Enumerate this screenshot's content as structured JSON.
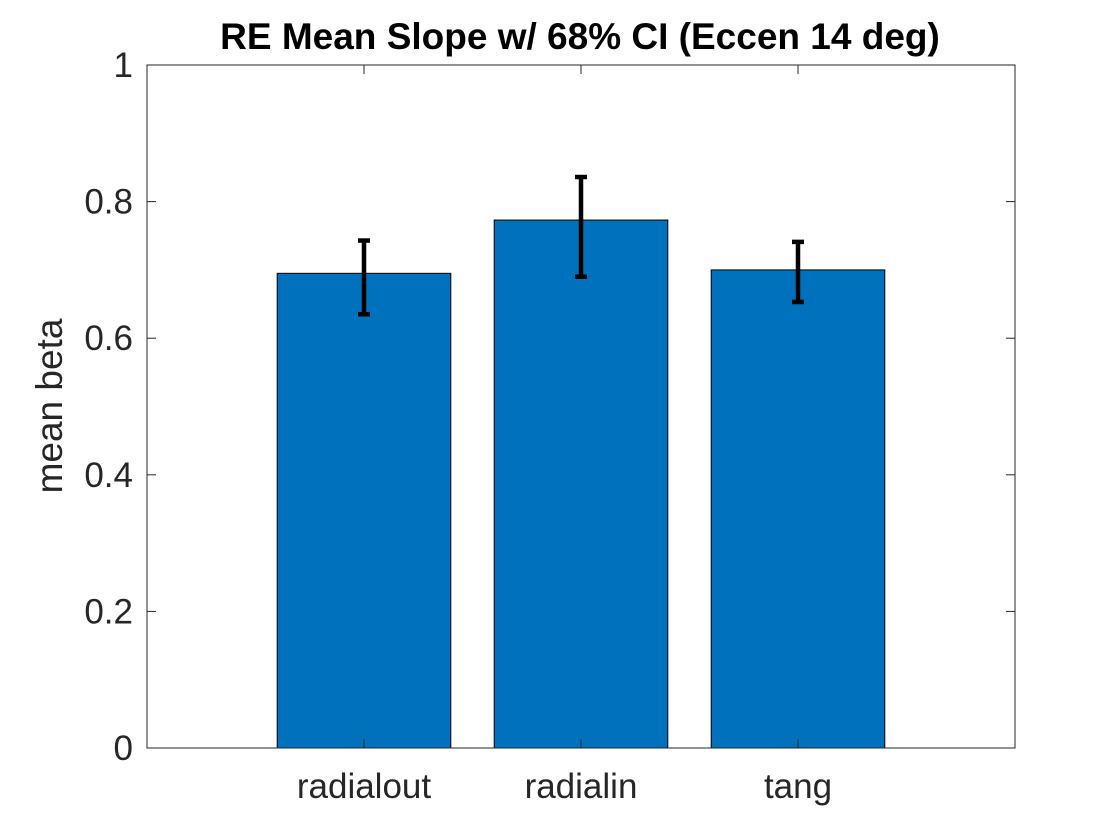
{
  "chart_data": {
    "type": "bar",
    "title": "RE Mean Slope w/ 68% CI (Eccen 14 deg)",
    "xlabel": "",
    "ylabel": "mean beta",
    "categories": [
      "radialout",
      "radialin",
      "tang"
    ],
    "values": [
      0.695,
      0.773,
      0.7
    ],
    "error_bars": [
      {
        "low": 0.635,
        "high": 0.743
      },
      {
        "low": 0.69,
        "high": 0.836
      },
      {
        "low": 0.653,
        "high": 0.741
      }
    ],
    "ylim": [
      0,
      1
    ],
    "xlim": [
      0,
      4
    ],
    "yticks": [
      0,
      0.2,
      0.4,
      0.6,
      0.8,
      1
    ],
    "ytick_labels": [
      "0",
      "0.2",
      "0.4",
      "0.6",
      "0.8",
      "1"
    ],
    "grid": false,
    "legend": "none",
    "colors": {
      "bar": "#0072BD",
      "error_bar": "#000000",
      "axis": "#262626",
      "title": "#000000"
    }
  }
}
